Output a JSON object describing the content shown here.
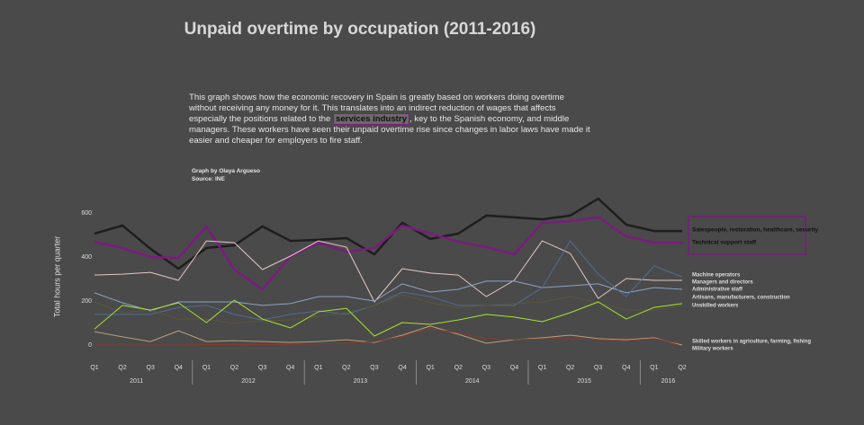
{
  "chart_data": {
    "type": "line",
    "title": "Unpaid overtime by occupation (2011-2016)",
    "description_before": "This graph shows how the economic recovery in Spain is greatly based on workers doing overtime without receiving any money for it. This translates into an indirect reduction of wages that affects especially the positions related to the",
    "description_highlight": "services industry",
    "description_after": ", key to the Spanish economy, and middle managers. These workers have seen their unpaid overtime rise since changes in labor laws have made it easier and cheaper for employers to fire staff.",
    "credit": "Graph by Olaya Argueso",
    "source": "Source: INE",
    "ylabel": "Total hours per quarter",
    "categories": [
      "Q1",
      "Q2",
      "Q3",
      "Q4",
      "Q1",
      "Q2",
      "Q3",
      "Q4",
      "Q1",
      "Q2",
      "Q3",
      "Q4",
      "Q1",
      "Q2",
      "Q3",
      "Q4",
      "Q1",
      "Q2",
      "Q3",
      "Q4",
      "Q1",
      "Q2"
    ],
    "year_labels": [
      "2011",
      "2012",
      "2013",
      "2014",
      "2015",
      "2016"
    ],
    "ylim": [
      -40,
      700
    ],
    "yticks": [
      0,
      200,
      400,
      600
    ],
    "series": [
      {
        "name": "Salespeople, restoration, healthcare, security",
        "color": "#1e1e1e",
        "values": [
          506,
          543,
          437,
          347,
          441,
          453,
          539,
          473,
          478,
          486,
          412,
          555,
          482,
          506,
          588,
          580,
          571,
          588,
          665,
          547,
          518,
          518
        ]
      },
      {
        "name": "Technical support staff",
        "color": "#7b1b7e",
        "values": [
          469,
          441,
          400,
          396,
          539,
          343,
          253,
          404,
          465,
          424,
          441,
          543,
          506,
          469,
          445,
          412,
          555,
          563,
          580,
          494,
          465,
          465
        ]
      },
      {
        "name": "Machine operators",
        "color": "#e6c6c6",
        "values": [
          318,
          322,
          330,
          294,
          473,
          465,
          343,
          404,
          473,
          445,
          196,
          347,
          327,
          318,
          220,
          294,
          473,
          416,
          212,
          302,
          294,
          294
        ]
      },
      {
        "name": "Managers and directors",
        "color": "#8aa2c7",
        "values": [
          237,
          192,
          155,
          196,
          196,
          196,
          180,
          188,
          220,
          220,
          200,
          278,
          241,
          253,
          290,
          290,
          261,
          269,
          278,
          237,
          261,
          253
        ]
      },
      {
        "name": "Administrative staff",
        "color": "#4f6d95",
        "values": [
          139,
          139,
          139,
          171,
          180,
          139,
          114,
          139,
          155,
          139,
          180,
          241,
          220,
          180,
          180,
          180,
          261,
          473,
          322,
          220,
          359,
          310
        ]
      },
      {
        "name": "Artisans, manufacturers, construction",
        "color": "#5e5638",
        "values": [
          196,
          147,
          159,
          118,
          118,
          98,
          110,
          114,
          131,
          147,
          180,
          229,
          192,
          171,
          180,
          188,
          196,
          220,
          192,
          159,
          159,
          180
        ]
      },
      {
        "name": "Unskilled  workers",
        "color": "#a6e22e",
        "values": [
          73,
          180,
          159,
          192,
          102,
          204,
          118,
          78,
          151,
          167,
          41,
          102,
          94,
          114,
          139,
          127,
          106,
          147,
          196,
          118,
          171,
          188
        ]
      },
      {
        "name": "Skilled workers in agriculture, farming, fishing",
        "color": "#b8a07a",
        "values": [
          61,
          37,
          16,
          65,
          16,
          20,
          16,
          12,
          16,
          24,
          12,
          45,
          86,
          49,
          8,
          24,
          33,
          45,
          29,
          24,
          33,
          0
        ]
      },
      {
        "name": "Military workers",
        "color": "#8b3a2a",
        "values": [
          0,
          0,
          0,
          0,
          2,
          3,
          2,
          3,
          5,
          8,
          15,
          40,
          75,
          55,
          30,
          25,
          28,
          30,
          25,
          20,
          30,
          5
        ]
      }
    ]
  }
}
